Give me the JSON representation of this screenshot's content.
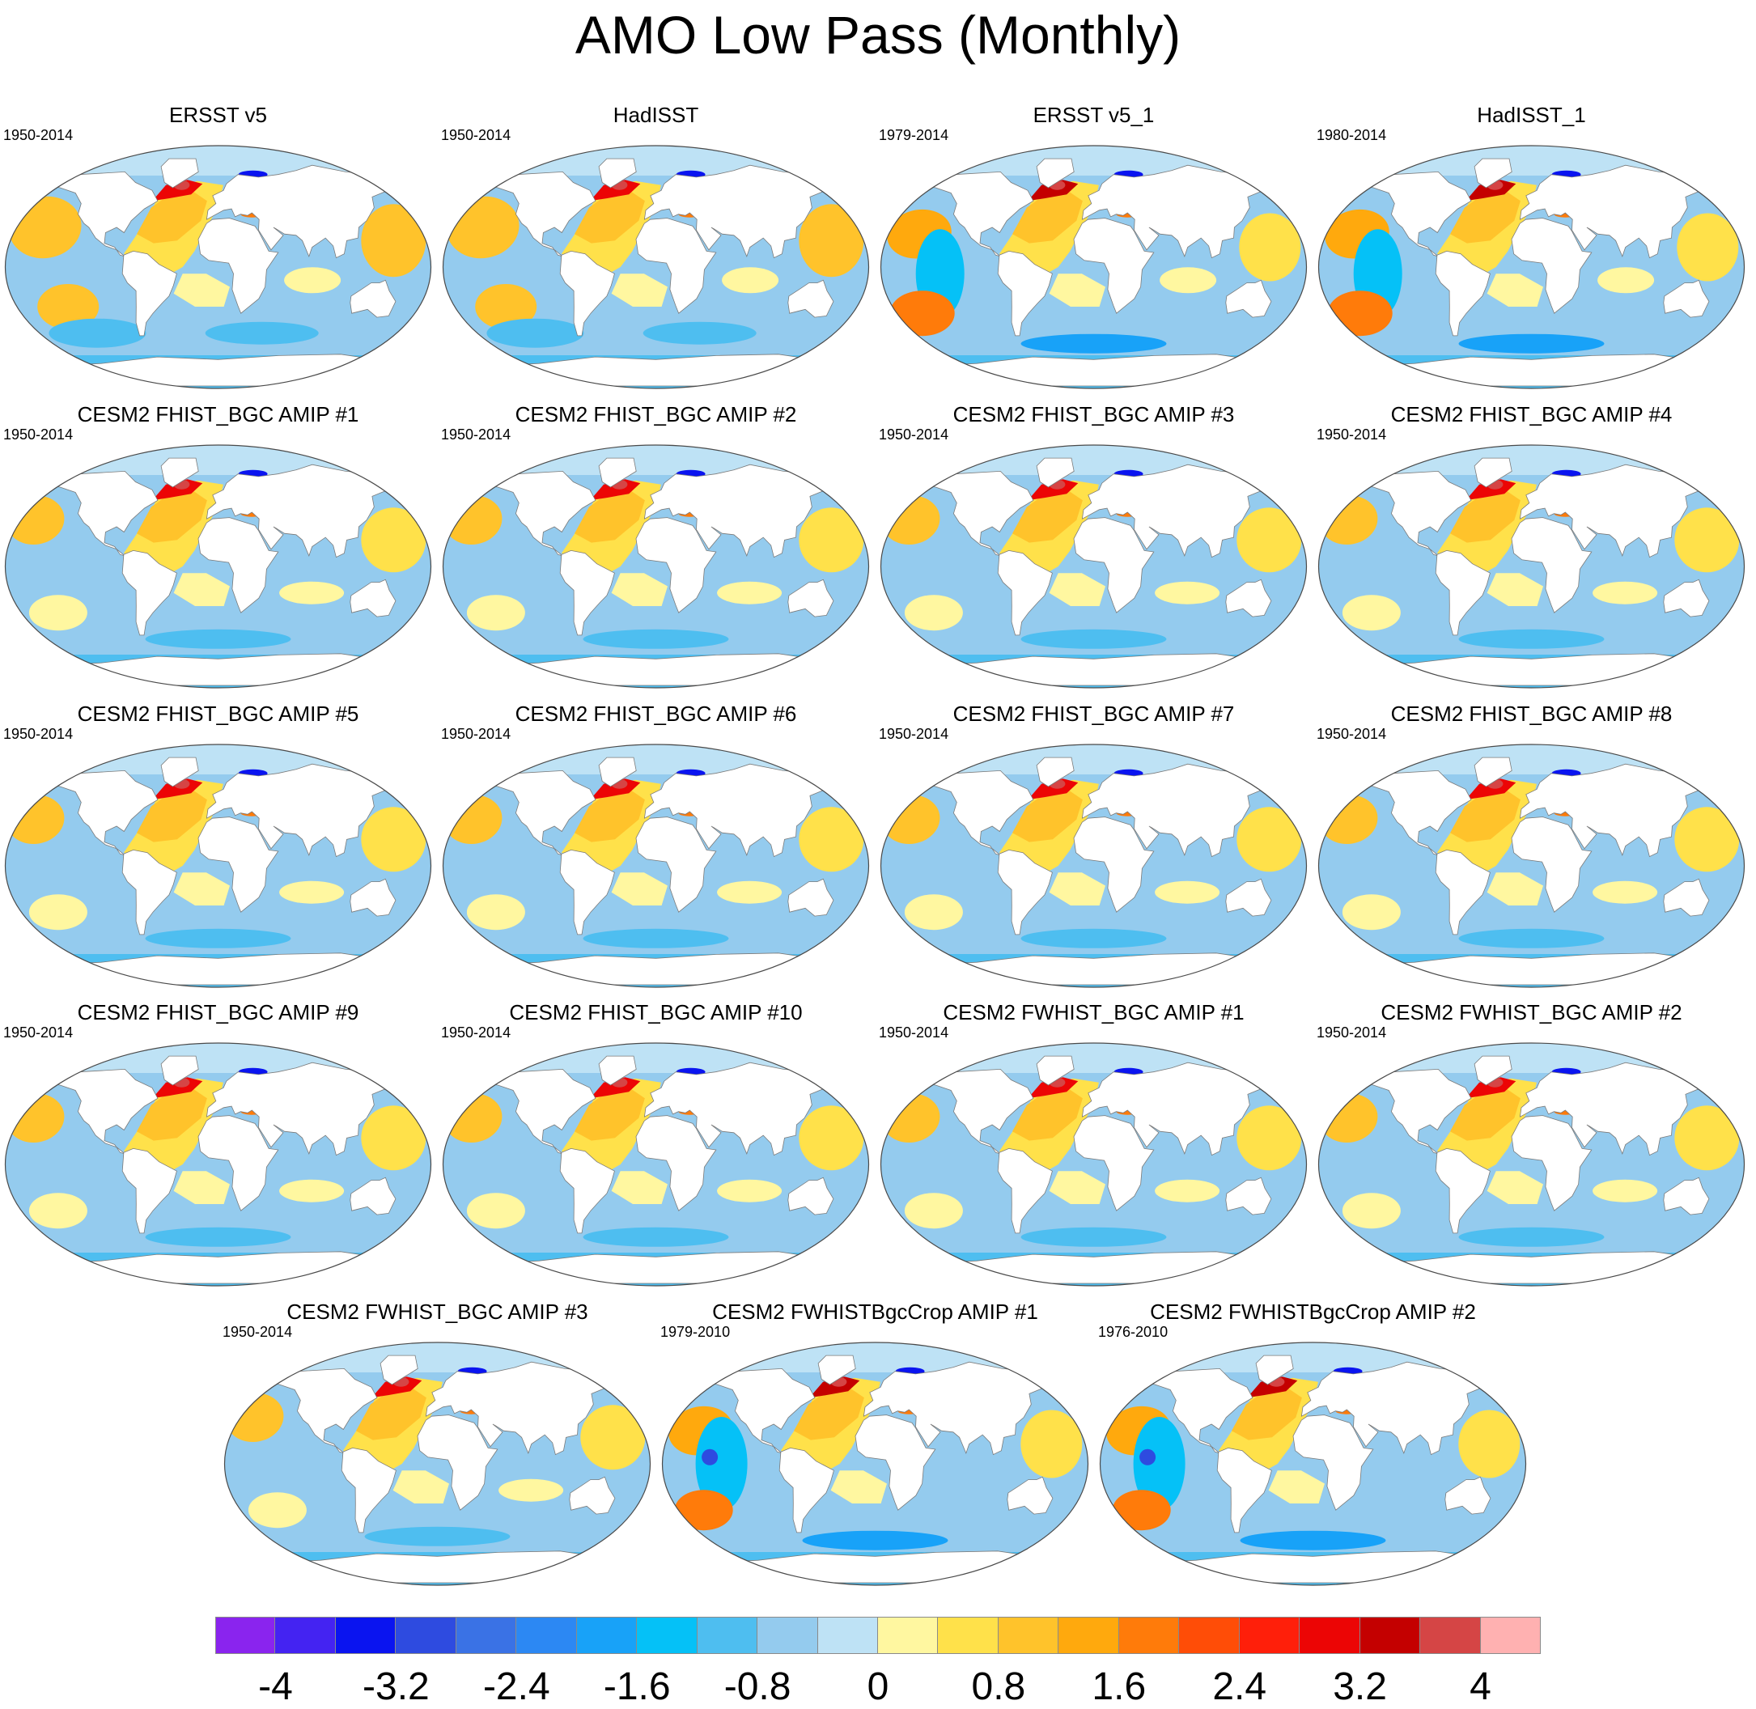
{
  "title": "AMO Low Pass (Monthly)",
  "panels": [
    {
      "title": "ERSST v5",
      "period": "1950-2014",
      "pattern": "obs_long"
    },
    {
      "title": "HadISST",
      "period": "1950-2014",
      "pattern": "obs_long"
    },
    {
      "title": "ERSST v5_1",
      "period": "1979-2014",
      "pattern": "obs_short"
    },
    {
      "title": "HadISST_1",
      "period": "1980-2014",
      "pattern": "obs_short"
    },
    {
      "title": "CESM2 FHIST_BGC AMIP #1",
      "period": "1950-2014",
      "pattern": "model"
    },
    {
      "title": "CESM2 FHIST_BGC AMIP #2",
      "period": "1950-2014",
      "pattern": "model"
    },
    {
      "title": "CESM2 FHIST_BGC AMIP #3",
      "period": "1950-2014",
      "pattern": "model"
    },
    {
      "title": "CESM2 FHIST_BGC AMIP #4",
      "period": "1950-2014",
      "pattern": "model"
    },
    {
      "title": "CESM2 FHIST_BGC AMIP #5",
      "period": "1950-2014",
      "pattern": "model"
    },
    {
      "title": "CESM2 FHIST_BGC AMIP #6",
      "period": "1950-2014",
      "pattern": "model"
    },
    {
      "title": "CESM2 FHIST_BGC AMIP #7",
      "period": "1950-2014",
      "pattern": "model"
    },
    {
      "title": "CESM2 FHIST_BGC AMIP #8",
      "period": "1950-2014",
      "pattern": "model"
    },
    {
      "title": "CESM2 FHIST_BGC AMIP #9",
      "period": "1950-2014",
      "pattern": "model"
    },
    {
      "title": "CESM2 FHIST_BGC AMIP #10",
      "period": "1950-2014",
      "pattern": "model"
    },
    {
      "title": "CESM2 FWHIST_BGC AMIP #1",
      "period": "1950-2014",
      "pattern": "model"
    },
    {
      "title": "CESM2 FWHIST_BGC AMIP #2",
      "period": "1950-2014",
      "pattern": "model"
    },
    {
      "title": "CESM2 FWHIST_BGC AMIP #3",
      "period": "1950-2014",
      "pattern": "model"
    },
    {
      "title": "CESM2 FWHISTBgcCrop AMIP #1",
      "period": "1979-2010",
      "pattern": "model_short"
    },
    {
      "title": "CESM2 FWHISTBgcCrop AMIP #2",
      "period": "1976-2010",
      "pattern": "model_short"
    }
  ],
  "colorbar": {
    "colors": [
      "#8a24ee",
      "#4423f2",
      "#0a14f0",
      "#2e4be0",
      "#3a72e5",
      "#2c88f3",
      "#18a2f8",
      "#05c1f7",
      "#4ebef0",
      "#94cbee",
      "#bee2f5",
      "#fff7a0",
      "#ffe14a",
      "#ffc32b",
      "#ffa90d",
      "#ff7b0a",
      "#ff4d07",
      "#ff1f0a",
      "#ec0505",
      "#c40000",
      "#d54545",
      "#ffb1b1"
    ],
    "labels": [
      "-4",
      "-3.2",
      "-2.4",
      "-1.6",
      "-0.8",
      "0",
      "0.8",
      "1.6",
      "2.4",
      "3.2",
      "4"
    ],
    "min": -4.4,
    "max": 4.4
  }
}
